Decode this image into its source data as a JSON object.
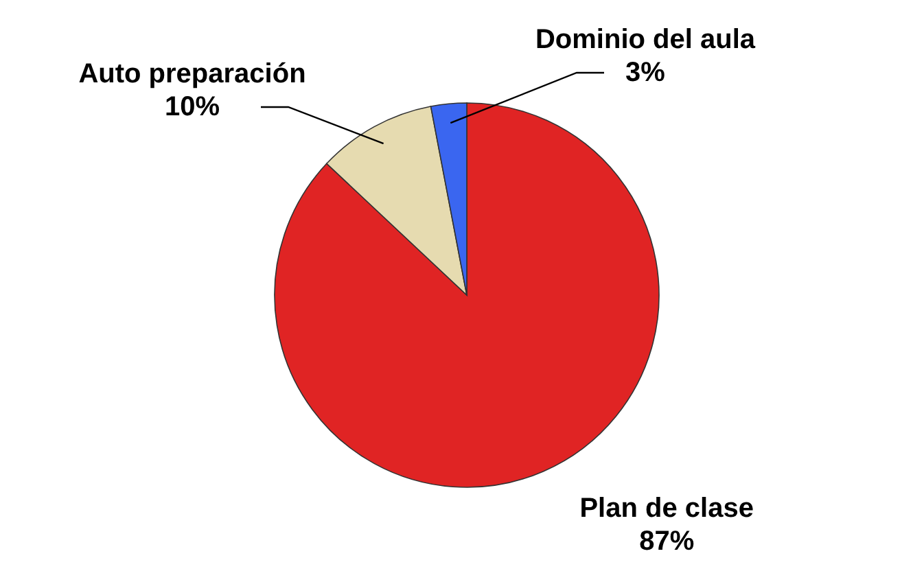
{
  "chart_data": {
    "type": "pie",
    "categories": [
      "Plan de clase",
      "Auto preparación",
      "Dominio del aula"
    ],
    "values": [
      87,
      10,
      3
    ],
    "value_labels": [
      "87%",
      "10%",
      "3%"
    ],
    "data_labels": true,
    "colors": [
      "#e02424",
      "#e6dbb0",
      "#3a66f0"
    ],
    "legend": false
  }
}
